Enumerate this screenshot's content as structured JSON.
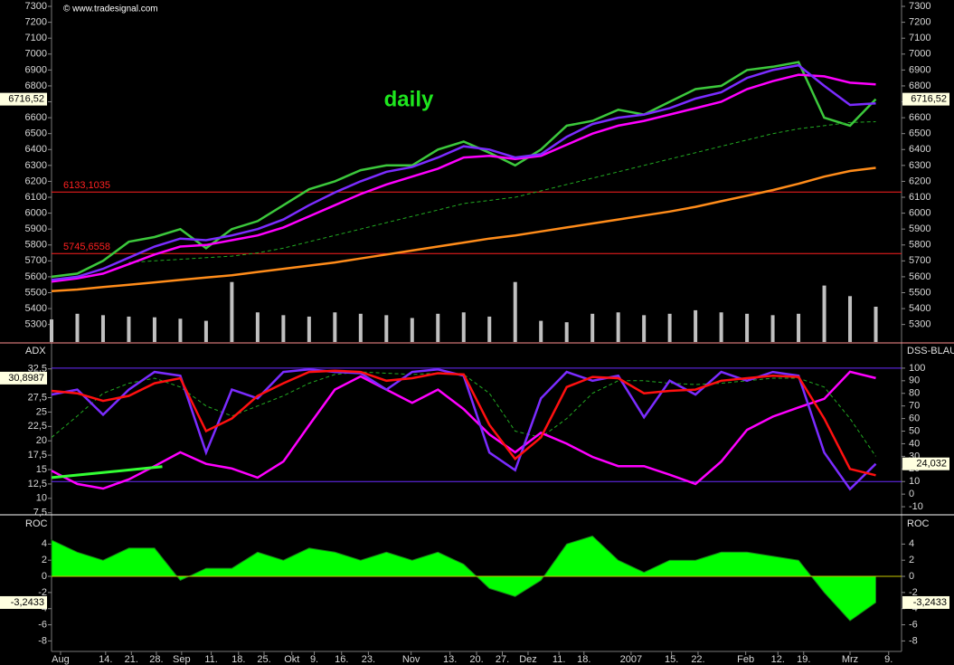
{
  "chart_data": [
    {
      "type": "line",
      "title": "daily",
      "copyright": "© www.tradesignal.com",
      "x": [
        0,
        1,
        2,
        3,
        4,
        5,
        6,
        7,
        8,
        9,
        10,
        11,
        12,
        13,
        14,
        15,
        16,
        17,
        18,
        19,
        20,
        21,
        22,
        23,
        24,
        25,
        26,
        27,
        28,
        29,
        30,
        31,
        32
      ],
      "xlim": [
        0,
        33
      ],
      "ylim": [
        5190,
        7340
      ],
      "yticks": [
        5300,
        5400,
        5500,
        5600,
        5700,
        5800,
        5900,
        6000,
        6100,
        6200,
        6300,
        6400,
        6500,
        6600,
        6700,
        6800,
        6900,
        7000,
        7100,
        7200,
        7300
      ],
      "series": [
        {
          "color": "#3cc83c",
          "values": [
            5600,
            5620,
            5700,
            5820,
            5850,
            5900,
            5780,
            5900,
            5950,
            6050,
            6150,
            6200,
            6270,
            6300,
            6300,
            6400,
            6450,
            6380,
            6300,
            6400,
            6550,
            6580,
            6650,
            6620,
            6700,
            6780,
            6800,
            6900,
            6920,
            6950,
            6600,
            6550,
            6716.52
          ]
        },
        {
          "color": "#22aa22",
          "style": "dashed",
          "values": [
            null,
            null,
            null,
            5690,
            5700,
            5710,
            5720,
            5730,
            5750,
            5780,
            5820,
            5860,
            5900,
            5940,
            5980,
            6020,
            6060,
            6080,
            6100,
            6140,
            6180,
            6220,
            6260,
            6300,
            6340,
            6380,
            6420,
            6460,
            6500,
            6530,
            6550,
            6570,
            6575
          ]
        },
        {
          "color": "#ff8c1a",
          "values": [
            5510,
            5520,
            5535,
            5550,
            5565,
            5580,
            5595,
            5610,
            5630,
            5650,
            5670,
            5690,
            5715,
            5740,
            5765,
            5790,
            5815,
            5840,
            5860,
            5885,
            5910,
            5935,
            5960,
            5985,
            6010,
            6040,
            6075,
            6110,
            6145,
            6185,
            6230,
            6265,
            6285
          ]
        },
        {
          "color": "#ff00ff",
          "values": [
            5570,
            5590,
            5620,
            5680,
            5740,
            5790,
            5800,
            5830,
            5860,
            5910,
            5980,
            6050,
            6120,
            6180,
            6230,
            6280,
            6350,
            6360,
            6340,
            6360,
            6430,
            6500,
            6550,
            6580,
            6620,
            6660,
            6700,
            6780,
            6830,
            6870,
            6860,
            6820,
            6810
          ]
        },
        {
          "color": "#7b2cff",
          "values": [
            5580,
            5600,
            5650,
            5720,
            5790,
            5840,
            5830,
            5860,
            5900,
            5960,
            6050,
            6130,
            6200,
            6260,
            6290,
            6350,
            6420,
            6400,
            6350,
            6370,
            6480,
            6560,
            6600,
            6620,
            6660,
            6720,
            6760,
            6850,
            6900,
            6930,
            6800,
            6680,
            6690
          ]
        }
      ],
      "hlines": [
        {
          "value": 6133.1035,
          "label": "6133,1035",
          "color": "#ff2020"
        },
        {
          "value": 5745.6558,
          "label": "5745,6558",
          "color": "#ff2020"
        }
      ],
      "last_value": {
        "value": 6716.52,
        "label": "6716,52"
      }
    },
    {
      "type": "bar",
      "x": [
        0,
        1,
        2,
        3,
        4,
        5,
        6,
        7,
        8,
        9,
        10,
        11,
        12,
        13,
        14,
        15,
        16,
        17,
        18,
        19,
        20,
        21,
        22,
        23,
        24,
        25,
        26,
        27,
        28,
        29,
        30,
        31,
        32
      ],
      "xlim": [
        0,
        33
      ],
      "ylim": [
        0,
        100
      ],
      "color": "#c0c0c0",
      "values": [
        32,
        40,
        38,
        36,
        35,
        33,
        30,
        85,
        42,
        38,
        36,
        42,
        40,
        38,
        34,
        40,
        42,
        36,
        85,
        30,
        28,
        40,
        42,
        38,
        40,
        45,
        42,
        40,
        38,
        40,
        80,
        65,
        50
      ]
    },
    {
      "type": "line",
      "ylabel": "ADX",
      "y2label": "DSS-BLAU",
      "x": [
        0,
        1,
        2,
        3,
        4,
        5,
        6,
        7,
        8,
        9,
        10,
        11,
        12,
        13,
        14,
        15,
        16,
        17,
        18,
        19,
        20,
        21,
        22,
        23,
        24,
        25,
        26,
        27,
        28,
        29,
        30,
        31,
        32
      ],
      "xlim": [
        0,
        33
      ],
      "ylim": [
        7.3,
        36.7
      ],
      "yticks": [
        {
          "value": 7.5,
          "label": "7,5"
        },
        10,
        {
          "value": 12.5,
          "label": "12,5"
        },
        15,
        {
          "value": 17.5,
          "label": "17,5"
        },
        20,
        {
          "value": 22.5,
          "label": "22,5"
        },
        25,
        {
          "value": 27.5,
          "label": "27,5"
        },
        {
          "value": 32.5,
          "label": "32,5"
        }
      ],
      "y2lim": [
        -15.7,
        118.6
      ],
      "y2ticks": [
        -10,
        0,
        10,
        20,
        30,
        40,
        50,
        60,
        70,
        80,
        90,
        100
      ],
      "levels": [
        100,
        10
      ],
      "level_color": "#6a2cff",
      "series": [
        {
          "color": "#22aa22",
          "style": "dashed",
          "axis": "y2",
          "values": [
            45,
            62,
            80,
            88,
            92,
            85,
            70,
            62,
            70,
            78,
            88,
            95,
            97,
            96,
            95,
            96,
            95,
            80,
            50,
            45,
            60,
            80,
            90,
            90,
            88,
            87,
            88,
            90,
            92,
            92,
            85,
            60,
            30
          ]
        },
        {
          "color": "#ff00ff",
          "values": [
            14.8,
            12.5,
            11.7,
            13.3,
            15.6,
            18,
            16,
            15.2,
            13.6,
            16.4,
            22.7,
            28.9,
            31.2,
            28.9,
            26.6,
            28.9,
            25.5,
            21.1,
            18,
            21.4,
            19.5,
            17.2,
            15.6,
            15.6,
            14.1,
            12.5,
            16.4,
            21.9,
            24.2,
            25.8,
            27.3,
            32,
            30.8987
          ]
        },
        {
          "color": "#7b2cff",
          "axis": "y2",
          "values": [
            79,
            83,
            63,
            83,
            97,
            94,
            33,
            83,
            76,
            97,
            99,
            97,
            96,
            83,
            97,
            99,
            94,
            33,
            19,
            76,
            97,
            90,
            94,
            61,
            90,
            79,
            97,
            90,
            97,
            94,
            33,
            4,
            24.032
          ]
        },
        {
          "color": "#ff1010",
          "axis": "y2",
          "values": [
            82,
            80,
            74,
            78,
            88,
            92,
            50,
            60,
            78,
            88,
            97,
            98,
            97,
            90,
            92,
            96,
            95,
            55,
            28,
            45,
            85,
            93,
            92,
            80,
            82,
            83,
            90,
            92,
            94,
            93,
            60,
            20,
            15
          ]
        }
      ],
      "trendline": {
        "color": "#33ff33",
        "x": [
          0,
          4.3
        ],
        "values": [
          13.6,
          15.5
        ]
      },
      "last_value": {
        "value": 30.8987,
        "label": "30,8987"
      },
      "last_value2": {
        "value": 24.032,
        "label": "24,032"
      }
    },
    {
      "type": "area",
      "ylabel": "ROC",
      "x": [
        0,
        1,
        2,
        3,
        4,
        5,
        6,
        7,
        8,
        9,
        10,
        11,
        12,
        13,
        14,
        15,
        16,
        17,
        18,
        19,
        20,
        21,
        22,
        23,
        24,
        25,
        26,
        27,
        28,
        29,
        30,
        31,
        32
      ],
      "xlim": [
        0,
        33
      ],
      "ylim": [
        -9.3,
        7.4
      ],
      "yticks": [
        -8,
        -6,
        -4,
        -2,
        0,
        2,
        4
      ],
      "color": "#00ff00",
      "values": [
        4.5,
        3,
        2,
        3.5,
        3.5,
        -0.5,
        1,
        1,
        3,
        2,
        3.5,
        3,
        2,
        3,
        2,
        3,
        1.5,
        -1.5,
        -2.5,
        -0.5,
        4,
        5,
        2,
        0.5,
        2,
        2,
        3,
        3,
        2.5,
        2,
        -2,
        -5.5,
        -3.2433
      ],
      "last_value": {
        "value": -3.2433,
        "label": "-3,2433"
      },
      "xticks": [
        {
          "value": 0.35,
          "label": "Aug"
        },
        {
          "value": 2.1,
          "label": "14."
        },
        {
          "value": 3.1,
          "label": "21."
        },
        {
          "value": 4.07,
          "label": "28."
        },
        {
          "value": 5.05,
          "label": "Sep"
        },
        {
          "value": 6.2,
          "label": "11."
        },
        {
          "value": 7.26,
          "label": "18."
        },
        {
          "value": 8.25,
          "label": "25."
        },
        {
          "value": 9.33,
          "label": "Okt"
        },
        {
          "value": 10.2,
          "label": "9."
        },
        {
          "value": 11.26,
          "label": "16."
        },
        {
          "value": 12.3,
          "label": "23."
        },
        {
          "value": 13.96,
          "label": "Nov"
        },
        {
          "value": 15.47,
          "label": "13."
        },
        {
          "value": 16.5,
          "label": "20."
        },
        {
          "value": 17.5,
          "label": "27."
        },
        {
          "value": 18.5,
          "label": "Dez"
        },
        {
          "value": 19.7,
          "label": "11."
        },
        {
          "value": 20.67,
          "label": "18."
        },
        {
          "value": 22.5,
          "label": "2007"
        },
        {
          "value": 24.07,
          "label": "15."
        },
        {
          "value": 25.1,
          "label": "22."
        },
        {
          "value": 26.95,
          "label": "Feb"
        },
        {
          "value": 28.2,
          "label": "12."
        },
        {
          "value": 29.2,
          "label": "19."
        },
        {
          "value": 31,
          "label": "Mrz"
        },
        {
          "value": 32.5,
          "label": "9."
        }
      ]
    }
  ]
}
